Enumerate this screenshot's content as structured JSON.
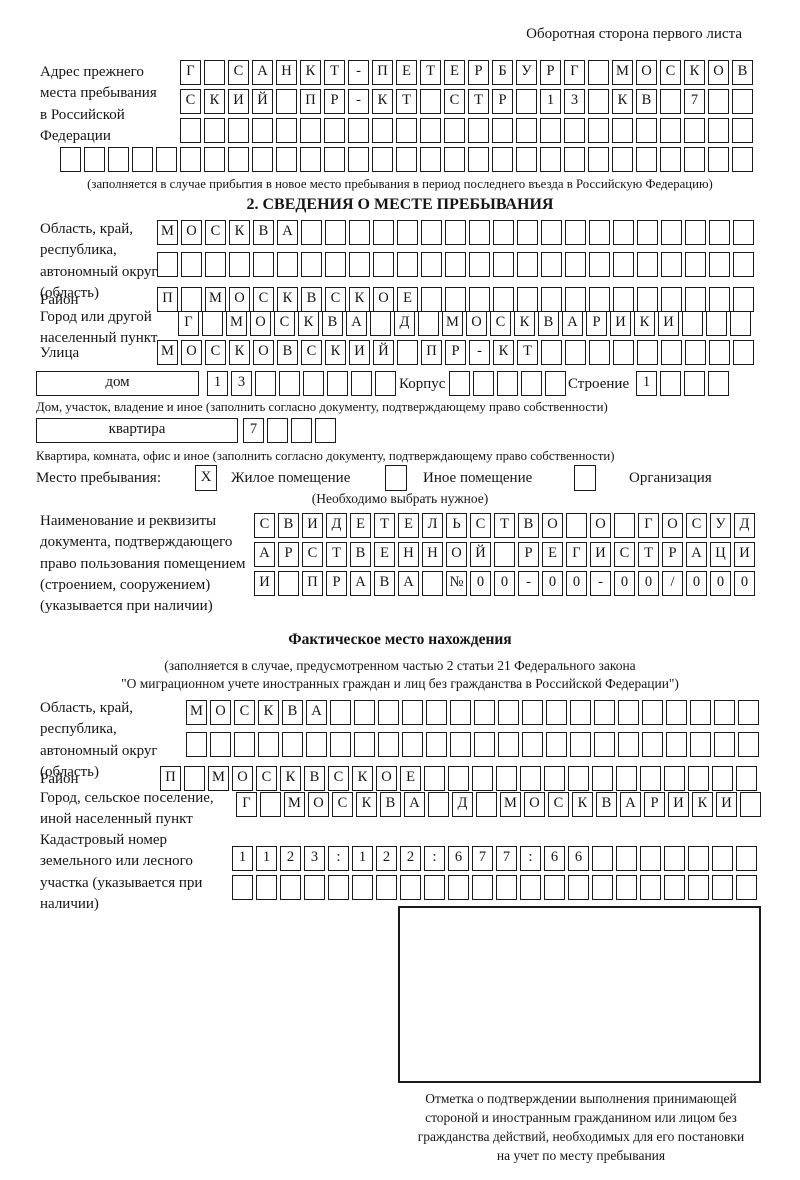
{
  "corner_note": "Оборотная сторона первого листа",
  "prev_address": {
    "label": "Адрес прежнего места пребывания в Российской Федерации",
    "row1": {
      "text": "Г САНКТ-ПЕТЕРБУРГ МОСКОВ",
      "len": 24
    },
    "row2": {
      "text": "СКИЙ ПР-КТ СТР 13 КВ 7",
      "len": 24
    },
    "row3": {
      "text": "",
      "len": 24
    },
    "row4": {
      "text": "",
      "len": 29
    },
    "caption": "(заполняется в случае прибытия в новое место пребывания в период последнего въезда в Российскую Федерацию)"
  },
  "section2": {
    "title": "2. СВЕДЕНИЯ О МЕСТЕ ПРЕБЫВАНИЯ",
    "oblast_label": "Область, край, республика, автономный округ (область)",
    "oblast_row1": {
      "text": "МОСКВА",
      "len": 25
    },
    "oblast_row2": {
      "text": "",
      "len": 25
    },
    "raion_label": "Район",
    "raion_row": {
      "text": "П МОСКВСКОЕ",
      "len": 25
    },
    "gorod_label": "Город или другой населенный пункт",
    "gorod_row": {
      "text": "Г МОСКВА Д МОСКВАРИКИ",
      "len": 24
    },
    "ulitsa_label": "Улица",
    "ulitsa_row": {
      "text": "МОСКОВСКИЙ ПР-КТ",
      "len": 25
    },
    "dom_box_label": "дом",
    "dom_cells": {
      "text": "13",
      "len": 8
    },
    "korpus_label": "Корпус",
    "korpus_cells": {
      "text": "",
      "len": 5
    },
    "stroenie_label": "Строение",
    "stroenie_cells": {
      "text": "1",
      "len": 4
    },
    "dom_caption": "Дом, участок, владение и иное (заполнить согласно документу, подтверждающему право собственности)",
    "kvartira_box_label": "квартира",
    "kvartira_cells": {
      "text": "7",
      "len": 4
    },
    "kvartira_caption": "Квартира, комната, офис и иное (заполнить согласно документу, подтверждающему право собственности)",
    "mesto_label": "Место пребывания:",
    "mesto_options": [
      {
        "mark": "X",
        "label": "Жилое помещение"
      },
      {
        "mark": "",
        "label": "Иное помещение"
      },
      {
        "mark": "",
        "label": "Организация"
      }
    ],
    "mesto_note": "(Необходимо выбрать нужное)",
    "doc_label": "Наименование и реквизиты документа, подтверждающего право пользования помещением (строением, сооружением) (указывается при наличии)",
    "doc_row1": {
      "text": "СВИДЕТЕЛЬСТВО О ГОСУД",
      "len": 21
    },
    "doc_row2": {
      "text": "АРСТВЕННОЙ РЕГИСТРАЦИ",
      "len": 21
    },
    "doc_row3": {
      "text": "И ПРАВА №00-00-00/000",
      "len": 21
    }
  },
  "factual": {
    "title": "Фактическое место нахождения",
    "note1": "(заполняется в случае, предусмотренном частью 2 статьи 21 Федерального закона",
    "note2": "\"О миграционном учете иностранных граждан и лиц без гражданства в Российской Федерации\")",
    "oblast_label": "Область, край, республика, автономный округ (область)",
    "oblast_row1": {
      "text": "МОСКВА",
      "len": 24
    },
    "oblast_row2": {
      "text": "",
      "len": 24
    },
    "raion_label": "Район",
    "raion_row": {
      "text": "П МОСКВСКОЕ",
      "len": 25
    },
    "gorod_label": "Город, сельское поселение, иной населенный пункт",
    "gorod_row": {
      "text": "Г МОСКВА Д МОСКВАРИКИ",
      "len": 22
    },
    "kadastr_label": "Кадастровый номер земельного или лесного участка (указывается при наличии)",
    "kadastr_row1": {
      "text": "1123:122:677:66",
      "len": 22
    },
    "kadastr_row2": {
      "text": "",
      "len": 22
    }
  },
  "stamp": {
    "caption_lines": [
      "Отметка о подтверждении выполнения принимающей",
      "стороной и иностранным гражданином или лицом без",
      "гражданства действий, необходимых для его постановки",
      "на учет по месту пребывания"
    ]
  }
}
